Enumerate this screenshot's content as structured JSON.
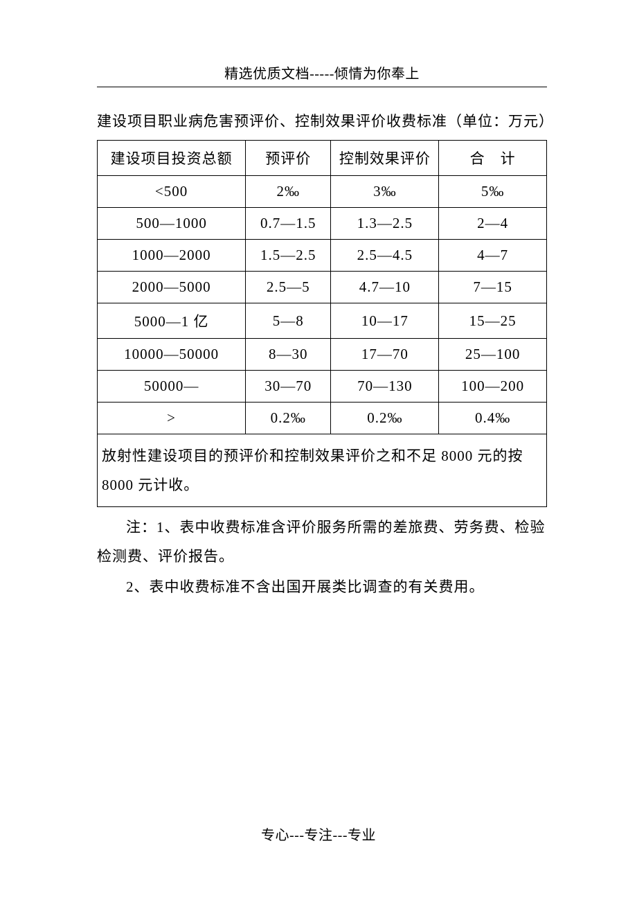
{
  "header": "精选优质文档-----倾情为你奉上",
  "title": "建设项目职业病危害预评价、控制效果评价收费标准（单位：万元）",
  "table": {
    "columns": [
      "建设项目投资总额",
      "预评价",
      "控制效果评价",
      "合　计"
    ],
    "rows": [
      [
        "<500",
        "2‰",
        "3‰",
        "5‰"
      ],
      [
        "500—1000",
        "0.7—1.5",
        "1.3—2.5",
        "2—4"
      ],
      [
        "1000—2000",
        "1.5—2.5",
        "2.5—4.5",
        "4—7"
      ],
      [
        "2000—5000",
        "2.5—5",
        "4.7—10",
        "7—15"
      ],
      [
        "5000—1 亿",
        "5—8",
        "10—17",
        "15—25"
      ],
      [
        "10000—50000",
        "8—30",
        "17—70",
        "25—100"
      ],
      [
        "50000—",
        "30—70",
        "70—130",
        "100—200"
      ],
      [
        ">",
        "0.2‰",
        "0.2‰",
        "0.4‰"
      ]
    ],
    "footnote": "放射性建设项目的预评价和控制效果评价之和不足 8000 元的按 8000 元计收。"
  },
  "notes": {
    "line1": "注：1、表中收费标准含评价服务所需的差旅费、劳务费、检验检测费、评价报告。",
    "line2": "2、表中收费标准不含出国开展类比调查的有关费用。"
  },
  "footer": "专心---专注---专业"
}
